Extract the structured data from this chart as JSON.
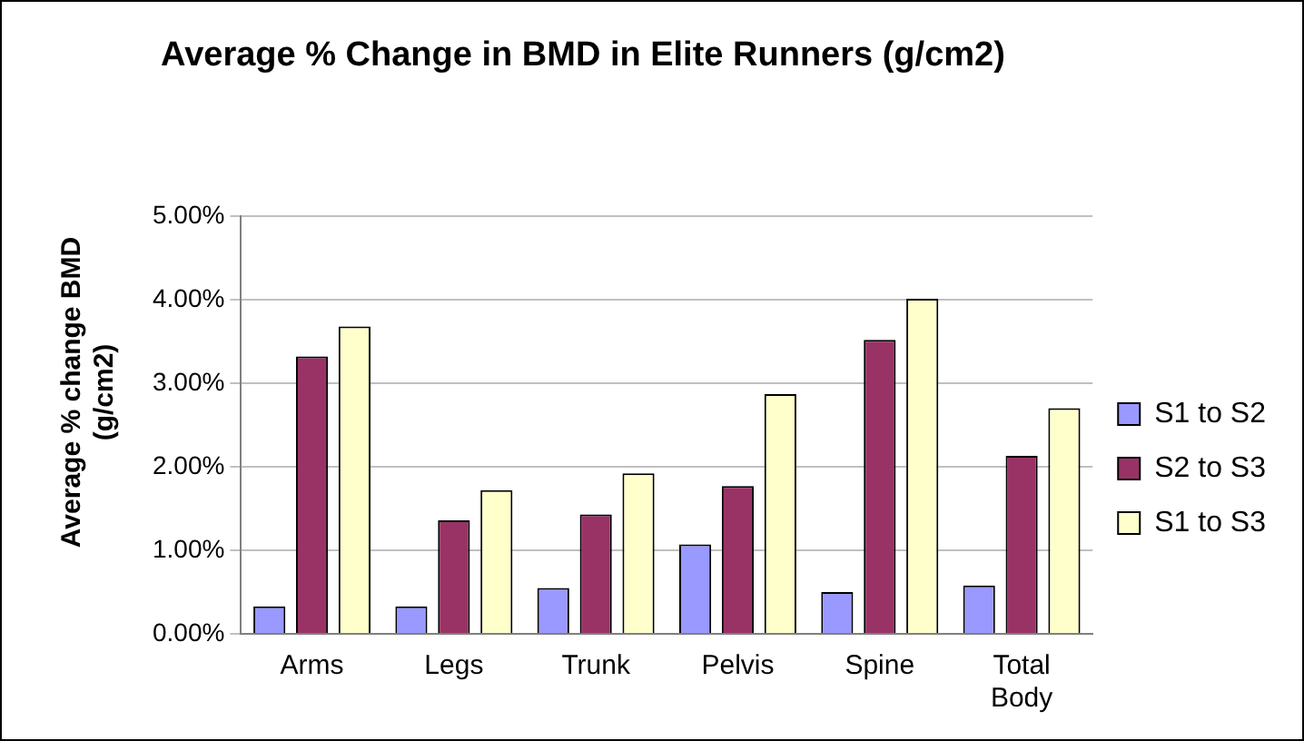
{
  "chart_data": {
    "type": "bar",
    "title": "Average % Change in BMD in Elite Runners (g/cm2)",
    "ylabel": "Average % change BMD (g/cm2)",
    "categories": [
      "Arms",
      "Legs",
      "Trunk",
      "Pelvis",
      "Spine",
      "Total Body"
    ],
    "series": [
      {
        "name": "S1 to S2",
        "color": "#9999ff",
        "values": [
          0.33,
          0.33,
          0.55,
          1.07,
          0.5,
          0.58
        ]
      },
      {
        "name": "S2 to S3",
        "color": "#993366",
        "values": [
          3.32,
          1.36,
          1.43,
          1.77,
          3.52,
          2.13
        ]
      },
      {
        "name": "S1 to S3",
        "color": "#ffffcc",
        "values": [
          3.68,
          1.72,
          1.92,
          2.87,
          4.01,
          2.7
        ]
      }
    ],
    "ylim": [
      0,
      5
    ],
    "yticks": [
      {
        "value": 0,
        "label": "0.00%"
      },
      {
        "value": 1,
        "label": "1.00%"
      },
      {
        "value": 2,
        "label": "2.00%"
      },
      {
        "value": 3,
        "label": "3.00%"
      },
      {
        "value": 4,
        "label": "4.00%"
      },
      {
        "value": 5,
        "label": "5.00%"
      }
    ],
    "grid": "y",
    "legend": "right"
  }
}
